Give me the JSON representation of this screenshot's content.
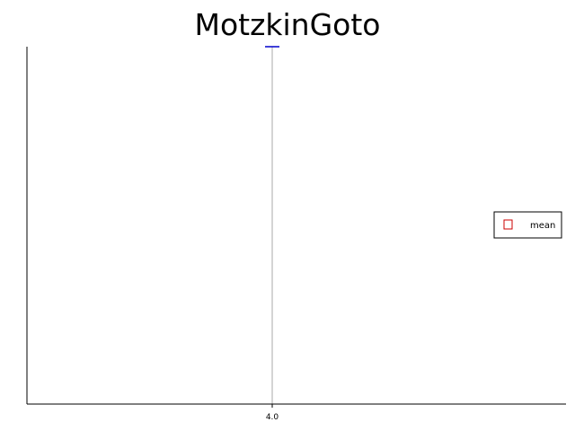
{
  "chart_data": {
    "type": "box",
    "title": "MotzkinGoto",
    "xlabel": "",
    "ylabel": "",
    "categories": [
      "4.0"
    ],
    "series": [
      {
        "name": "mean",
        "x": [
          4.0
        ],
        "values": [
          1.0
        ]
      }
    ],
    "legend": {
      "position": "right",
      "entries": [
        "mean"
      ]
    },
    "grid": false,
    "colors": {
      "whisker": "#aaaaaa",
      "median": "#0000cc",
      "mean_marker": "#cc0000",
      "axis": "#000000"
    }
  }
}
